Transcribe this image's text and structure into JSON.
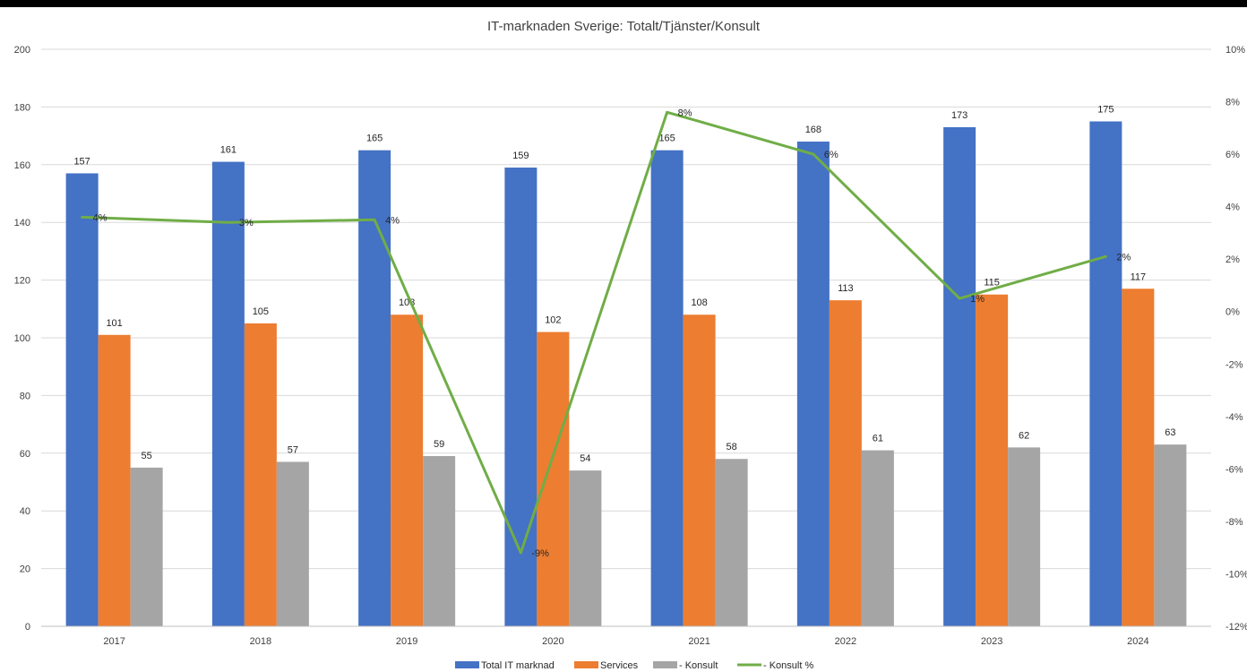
{
  "chart_data": {
    "type": "bar",
    "title": "IT-marknaden Sverige: Totalt/Tjänster/Konsult",
    "categories": [
      "2017",
      "2018",
      "2019",
      "2020",
      "2021",
      "2022",
      "2023",
      "2024"
    ],
    "series": [
      {
        "name": "Total IT marknad",
        "type": "bar",
        "axis": "left",
        "color": "#4472C4",
        "values": [
          157,
          161,
          165,
          159,
          165,
          168,
          173,
          175
        ]
      },
      {
        "name": "Services",
        "type": "bar",
        "axis": "left",
        "color": "#ED7D31",
        "values": [
          101,
          105,
          108,
          102,
          108,
          113,
          115,
          117
        ]
      },
      {
        "name": "- Konsult",
        "type": "bar",
        "axis": "left",
        "color": "#A5A5A5",
        "values": [
          55,
          57,
          59,
          54,
          58,
          61,
          62,
          63
        ]
      },
      {
        "name": "- Konsult %",
        "type": "line",
        "axis": "right",
        "color": "#70AD47",
        "values": [
          3.6,
          3.4,
          3.5,
          -9.2,
          7.6,
          6.0,
          0.5,
          2.1
        ],
        "labels": [
          "4%",
          "3%",
          "4%",
          "-9%",
          "8%",
          "6%",
          "1%",
          "2%"
        ]
      }
    ],
    "y_left": {
      "min": 0,
      "max": 200,
      "step": 20,
      "ticks": [
        "0",
        "20",
        "40",
        "60",
        "80",
        "100",
        "120",
        "140",
        "160",
        "180",
        "200"
      ]
    },
    "y_right": {
      "min": -12,
      "max": 10,
      "step": 2,
      "ticks": [
        "-12%",
        "-10%",
        "-8%",
        "-6%",
        "-4%",
        "-2%",
        "0%",
        "2%",
        "4%",
        "6%",
        "8%",
        "10%"
      ]
    },
    "grid": true,
    "legend_position": "bottom",
    "colors": {
      "background": "#ffffff",
      "grid": "#d9d9d9",
      "axis": "#bfbfbf",
      "text": "#404040"
    }
  }
}
